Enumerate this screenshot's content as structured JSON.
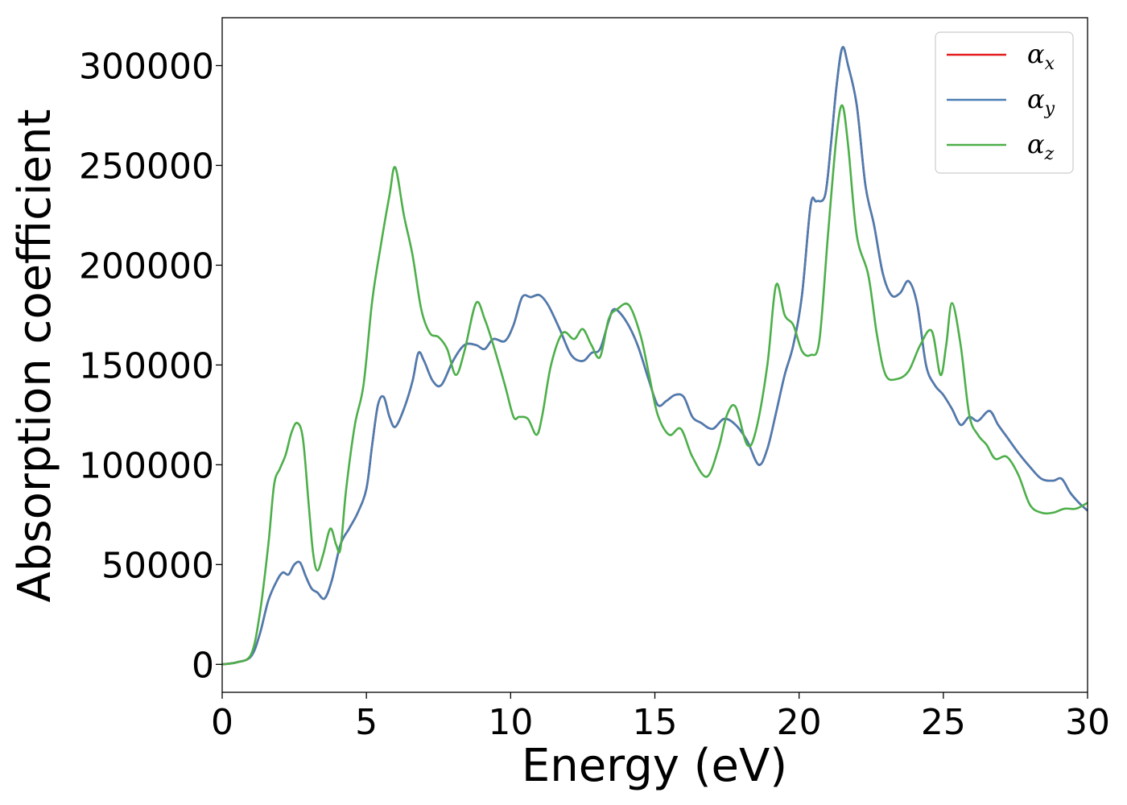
{
  "chart_data": {
    "type": "line",
    "title": "",
    "xlabel": "Energy (eV)",
    "ylabel": "Absorption coefficient",
    "xlim": [
      0,
      30
    ],
    "ylim": [
      -14000,
      324000
    ],
    "xticks": [
      0,
      5,
      10,
      15,
      20,
      25,
      30
    ],
    "xtick_labels": [
      "0",
      "5",
      "10",
      "15",
      "20",
      "25",
      "30"
    ],
    "yticks": [
      0,
      50000,
      100000,
      150000,
      200000,
      250000,
      300000
    ],
    "ytick_labels": [
      "0",
      "50000",
      "100000",
      "150000",
      "200000",
      "250000",
      "300000"
    ],
    "grid": false,
    "legend_position": "top-right",
    "series": [
      {
        "name": "αx",
        "legend_symbol": "α",
        "legend_subscript": "x",
        "color": "#e41a1c",
        "x": [
          0,
          0.5,
          1,
          1.3,
          1.6,
          1.9,
          2.1,
          2.3,
          2.5,
          2.7,
          2.9,
          3.1,
          3.3,
          3.55,
          3.8,
          4.1,
          4.4,
          4.7,
          5,
          5.2,
          5.4,
          5.6,
          5.8,
          6,
          6.3,
          6.6,
          6.8,
          7,
          7.3,
          7.6,
          8,
          8.4,
          8.8,
          9.1,
          9.4,
          9.8,
          10.1,
          10.4,
          10.7,
          11,
          11.3,
          11.7,
          12.1,
          12.5,
          12.8,
          13.1,
          13.4,
          13.6,
          14,
          14.4,
          14.8,
          15.1,
          15.4,
          15.7,
          16,
          16.3,
          16.6,
          17,
          17.4,
          17.8,
          18.2,
          18.6,
          18.9,
          19.2,
          19.5,
          19.8,
          20.1,
          20.4,
          20.6,
          20.9,
          21.1,
          21.3,
          21.5,
          21.7,
          22,
          22.3,
          22.6,
          22.9,
          23.2,
          23.5,
          23.8,
          24.1,
          24.4,
          24.7,
          25,
          25.3,
          25.6,
          25.9,
          26.2,
          26.6,
          26.9,
          27.2,
          27.6,
          28,
          28.4,
          28.8,
          29.1,
          29.4,
          29.7,
          30
        ],
        "y": [
          0,
          1000,
          4000,
          15000,
          32000,
          42000,
          46000,
          45000,
          50000,
          51000,
          44000,
          38000,
          36000,
          33000,
          42000,
          60000,
          68000,
          76000,
          88000,
          110000,
          130000,
          134000,
          124000,
          119000,
          128000,
          142000,
          156000,
          152000,
          142000,
          140000,
          152000,
          160000,
          160000,
          158000,
          163000,
          162000,
          170000,
          184000,
          184000,
          185000,
          180000,
          168000,
          155000,
          152000,
          156000,
          158000,
          172000,
          178000,
          172000,
          160000,
          142000,
          130000,
          132000,
          135000,
          134000,
          124000,
          121000,
          118000,
          123000,
          120000,
          112000,
          100000,
          108000,
          126000,
          145000,
          160000,
          185000,
          230000,
          232000,
          235000,
          260000,
          290000,
          309000,
          300000,
          280000,
          240000,
          220000,
          196000,
          185000,
          186000,
          192000,
          180000,
          150000,
          140000,
          135000,
          128000,
          120000,
          124000,
          122000,
          127000,
          120000,
          114000,
          106000,
          99000,
          93000,
          92000,
          93000,
          86000,
          81000,
          77000
        ]
      },
      {
        "name": "αy",
        "legend_symbol": "α",
        "legend_subscript": "y",
        "color": "#4a7db2",
        "x": [
          0,
          0.5,
          1,
          1.3,
          1.6,
          1.9,
          2.1,
          2.3,
          2.5,
          2.7,
          2.9,
          3.1,
          3.3,
          3.55,
          3.8,
          4.1,
          4.4,
          4.7,
          5,
          5.2,
          5.4,
          5.6,
          5.8,
          6,
          6.3,
          6.6,
          6.8,
          7,
          7.3,
          7.6,
          8,
          8.4,
          8.8,
          9.1,
          9.4,
          9.8,
          10.1,
          10.4,
          10.7,
          11,
          11.3,
          11.7,
          12.1,
          12.5,
          12.8,
          13.1,
          13.4,
          13.6,
          14,
          14.4,
          14.8,
          15.1,
          15.4,
          15.7,
          16,
          16.3,
          16.6,
          17,
          17.4,
          17.8,
          18.2,
          18.6,
          18.9,
          19.2,
          19.5,
          19.8,
          20.1,
          20.4,
          20.6,
          20.9,
          21.1,
          21.3,
          21.5,
          21.7,
          22,
          22.3,
          22.6,
          22.9,
          23.2,
          23.5,
          23.8,
          24.1,
          24.4,
          24.7,
          25,
          25.3,
          25.6,
          25.9,
          26.2,
          26.6,
          26.9,
          27.2,
          27.6,
          28,
          28.4,
          28.8,
          29.1,
          29.4,
          29.7,
          30
        ],
        "y": [
          0,
          1000,
          4000,
          15000,
          32000,
          42000,
          46000,
          45000,
          50000,
          51000,
          44000,
          38000,
          36000,
          33000,
          42000,
          60000,
          68000,
          76000,
          88000,
          110000,
          130000,
          134000,
          124000,
          119000,
          128000,
          142000,
          156000,
          152000,
          142000,
          140000,
          152000,
          160000,
          160000,
          158000,
          163000,
          162000,
          170000,
          184000,
          184000,
          185000,
          180000,
          168000,
          155000,
          152000,
          156000,
          158000,
          172000,
          178000,
          172000,
          160000,
          142000,
          130000,
          132000,
          135000,
          134000,
          124000,
          121000,
          118000,
          123000,
          120000,
          112000,
          100000,
          108000,
          126000,
          145000,
          160000,
          185000,
          230000,
          232000,
          235000,
          260000,
          290000,
          309000,
          300000,
          280000,
          240000,
          220000,
          196000,
          185000,
          186000,
          192000,
          180000,
          150000,
          140000,
          135000,
          128000,
          120000,
          124000,
          122000,
          127000,
          120000,
          114000,
          106000,
          99000,
          93000,
          92000,
          93000,
          86000,
          81000,
          77000
        ]
      },
      {
        "name": "αz",
        "legend_symbol": "α",
        "legend_subscript": "z",
        "color": "#4daf4a",
        "x": [
          0,
          0.5,
          1,
          1.3,
          1.6,
          1.8,
          2,
          2.2,
          2.4,
          2.6,
          2.8,
          3,
          3.15,
          3.3,
          3.5,
          3.75,
          3.95,
          4.1,
          4.3,
          4.6,
          4.9,
          5.2,
          5.5,
          5.8,
          6,
          6.3,
          6.6,
          6.9,
          7.2,
          7.5,
          7.8,
          8.1,
          8.4,
          8.8,
          9.1,
          9.4,
          9.8,
          10.1,
          10.3,
          10.6,
          10.9,
          11.1,
          11.4,
          11.8,
          12.2,
          12.5,
          12.8,
          13.1,
          13.4,
          13.7,
          14.1,
          14.5,
          14.8,
          15.1,
          15.5,
          15.9,
          16.3,
          16.8,
          17.2,
          17.5,
          17.8,
          18.2,
          18.5,
          18.9,
          19.2,
          19.5,
          19.8,
          20.1,
          20.4,
          20.7,
          21,
          21.3,
          21.5,
          21.7,
          22,
          22.4,
          22.7,
          23,
          23.4,
          23.8,
          24.2,
          24.6,
          24.9,
          25.1,
          25.3,
          25.6,
          25.9,
          26.2,
          26.5,
          26.8,
          27.2,
          27.6,
          28,
          28.4,
          28.8,
          29.2,
          29.6,
          30
        ],
        "y": [
          0,
          1000,
          5000,
          25000,
          60000,
          90000,
          98000,
          105000,
          116000,
          121000,
          113000,
          80000,
          56000,
          47000,
          55000,
          68000,
          60000,
          58000,
          88000,
          120000,
          140000,
          182000,
          210000,
          235000,
          249000,
          225000,
          205000,
          178000,
          166000,
          164000,
          158000,
          145000,
          157000,
          181000,
          173000,
          160000,
          140000,
          124000,
          124000,
          123000,
          115000,
          125000,
          150000,
          166000,
          163000,
          168000,
          160000,
          154000,
          173000,
          178000,
          180000,
          165000,
          145000,
          125000,
          115000,
          118000,
          104000,
          94000,
          108000,
          125000,
          129000,
          110000,
          117000,
          150000,
          190000,
          175000,
          170000,
          157000,
          155000,
          162000,
          215000,
          265000,
          280000,
          260000,
          215000,
          195000,
          165000,
          145000,
          143000,
          147000,
          160000,
          167000,
          145000,
          160000,
          181000,
          160000,
          125000,
          115000,
          110000,
          103000,
          104000,
          95000,
          80000,
          76000,
          76000,
          78000,
          78000,
          81000
        ]
      }
    ]
  }
}
